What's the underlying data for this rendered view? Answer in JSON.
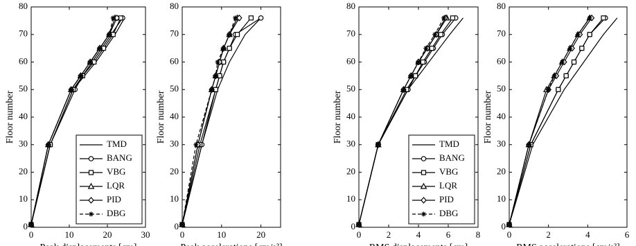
{
  "chart_data": [
    {
      "type": "line",
      "x_label": "Peak displacements [cm]",
      "y_label": "Floor number",
      "legend": "lower right",
      "y": [
        1,
        30,
        50,
        55,
        60,
        65,
        70,
        76
      ],
      "xlim": [
        0,
        30
      ],
      "xticks": [
        0,
        10,
        20,
        30
      ],
      "ylim": [
        0,
        80
      ],
      "yticks": [
        0,
        10,
        20,
        30,
        40,
        50,
        60,
        70,
        80
      ],
      "series": [
        {
          "name": "TMD",
          "color": "#000000",
          "marker": "none",
          "dash": false,
          "values": [
            0,
            5,
            11,
            14,
            17,
            19.5,
            22,
            24.5
          ]
        },
        {
          "name": "BANG",
          "color": "#000000",
          "marker": "circle",
          "dash": false,
          "values": [
            0,
            5,
            11.5,
            13.5,
            16,
            18.5,
            21,
            24
          ]
        },
        {
          "name": "VBG",
          "color": "#000000",
          "marker": "square",
          "dash": false,
          "values": [
            0,
            5,
            11,
            13.5,
            16.5,
            19,
            21.5,
            23.5
          ]
        },
        {
          "name": "LQR",
          "color": "#000000",
          "marker": "triangle",
          "dash": false,
          "values": [
            0,
            4.5,
            10.5,
            13,
            15.5,
            18,
            20.5,
            22
          ]
        },
        {
          "name": "PID",
          "color": "#000000",
          "marker": "diamond",
          "dash": false,
          "values": [
            0,
            4.5,
            10.5,
            13,
            15.5,
            18,
            20.5,
            22.5
          ]
        },
        {
          "name": "DBG",
          "color": "#000000",
          "marker": "star",
          "dash": true,
          "values": [
            0,
            4.5,
            10.5,
            13,
            15.5,
            18,
            20.5,
            21.5
          ]
        }
      ]
    },
    {
      "type": "line",
      "x_label": "Peak accelerations [cm/s²]",
      "y_label": "Floor number",
      "y": [
        1,
        30,
        50,
        55,
        60,
        65,
        70,
        76
      ],
      "xlim": [
        0,
        25
      ],
      "xticks": [
        0,
        10,
        20
      ],
      "ylim": [
        0,
        80
      ],
      "yticks": [
        0,
        10,
        20,
        30,
        40,
        50,
        60,
        70,
        80
      ],
      "series": [
        {
          "name": "TMD",
          "color": "#000000",
          "marker": "none",
          "dash": false,
          "values": [
            0,
            5,
            9,
            10.5,
            12,
            14,
            16,
            20
          ]
        },
        {
          "name": "BANG",
          "color": "#000000",
          "marker": "circle",
          "dash": false,
          "values": [
            0,
            5,
            8.5,
            9.5,
            10.5,
            12,
            13.5,
            20
          ]
        },
        {
          "name": "VBG",
          "color": "#000000",
          "marker": "square",
          "dash": false,
          "values": [
            0,
            4.5,
            8.5,
            9.5,
            10.5,
            12,
            14,
            17.5
          ]
        },
        {
          "name": "LQR",
          "color": "#000000",
          "marker": "triangle",
          "dash": false,
          "values": [
            0,
            4,
            7.5,
            8.5,
            9.5,
            10.5,
            12,
            14
          ]
        },
        {
          "name": "PID",
          "color": "#000000",
          "marker": "diamond",
          "dash": false,
          "values": [
            0,
            4,
            7.5,
            8.5,
            9.5,
            10.5,
            12,
            14.5
          ]
        },
        {
          "name": "DBG",
          "color": "#000000",
          "marker": "star",
          "dash": true,
          "values": [
            0,
            3.5,
            7.5,
            8.5,
            9,
            10.5,
            12,
            13.5
          ]
        }
      ]
    },
    {
      "type": "line",
      "x_label": "RMS displacements [cm]",
      "y_label": "Floor number",
      "legend": "lower right",
      "y": [
        1,
        30,
        50,
        55,
        60,
        65,
        70,
        76
      ],
      "xlim": [
        0,
        8
      ],
      "xticks": [
        0,
        2,
        4,
        6,
        8
      ],
      "ylim": [
        0,
        80
      ],
      "yticks": [
        0,
        10,
        20,
        30,
        40,
        50,
        60,
        70,
        80
      ],
      "series": [
        {
          "name": "TMD",
          "color": "#000000",
          "marker": "none",
          "dash": false,
          "values": [
            0,
            1.3,
            3.3,
            4,
            4.7,
            5.4,
            6.1,
            7
          ]
        },
        {
          "name": "BANG",
          "color": "#000000",
          "marker": "circle",
          "dash": false,
          "values": [
            0,
            1.3,
            3.3,
            3.8,
            4.4,
            5,
            5.6,
            6.5
          ]
        },
        {
          "name": "VBG",
          "color": "#000000",
          "marker": "square",
          "dash": false,
          "values": [
            0,
            1.3,
            3.2,
            3.8,
            4.3,
            4.9,
            5.5,
            6.3
          ]
        },
        {
          "name": "LQR",
          "color": "#000000",
          "marker": "triangle",
          "dash": false,
          "values": [
            0,
            1.3,
            3,
            3.5,
            4,
            4.6,
            5.2,
            5.9
          ]
        },
        {
          "name": "PID",
          "color": "#000000",
          "marker": "diamond",
          "dash": false,
          "values": [
            0,
            1.3,
            3,
            3.5,
            4,
            4.6,
            5.2,
            5.8
          ]
        },
        {
          "name": "DBG",
          "color": "#000000",
          "marker": "star",
          "dash": true,
          "values": [
            0,
            1.3,
            3,
            3.5,
            4,
            4.5,
            5.1,
            5.7
          ]
        }
      ]
    },
    {
      "type": "line",
      "x_label": "RMS accelerations [cm/s²]",
      "y_label": "Floor number",
      "y": [
        1,
        30,
        50,
        55,
        60,
        65,
        70,
        76
      ],
      "xlim": [
        0,
        6
      ],
      "xticks": [
        0,
        2,
        4,
        6
      ],
      "ylim": [
        0,
        80
      ],
      "yticks": [
        0,
        10,
        20,
        30,
        40,
        50,
        60,
        70,
        80
      ],
      "series": [
        {
          "name": "TMD",
          "color": "#000000",
          "marker": "none",
          "dash": false,
          "values": [
            0,
            1.2,
            2.8,
            3.3,
            3.8,
            4.3,
            4.8,
            5.5
          ]
        },
        {
          "name": "BANG",
          "color": "#000000",
          "marker": "circle",
          "dash": false,
          "values": [
            0,
            1.1,
            2.5,
            2.9,
            3.3,
            3.7,
            4.1,
            4.9
          ]
        },
        {
          "name": "VBG",
          "color": "#000000",
          "marker": "square",
          "dash": false,
          "values": [
            0,
            1.1,
            2.5,
            2.9,
            3.3,
            3.7,
            4.1,
            4.8
          ]
        },
        {
          "name": "LQR",
          "color": "#000000",
          "marker": "triangle",
          "dash": false,
          "values": [
            0,
            1,
            1.9,
            2.3,
            2.7,
            3.1,
            3.5,
            4.1
          ]
        },
        {
          "name": "PID",
          "color": "#000000",
          "marker": "diamond",
          "dash": false,
          "values": [
            0,
            1,
            2,
            2.4,
            2.8,
            3.2,
            3.6,
            4.2
          ]
        },
        {
          "name": "DBG",
          "color": "#000000",
          "marker": "star",
          "dash": true,
          "values": [
            0,
            1,
            2,
            2.3,
            2.7,
            3.1,
            3.5,
            4.1
          ]
        }
      ]
    }
  ]
}
